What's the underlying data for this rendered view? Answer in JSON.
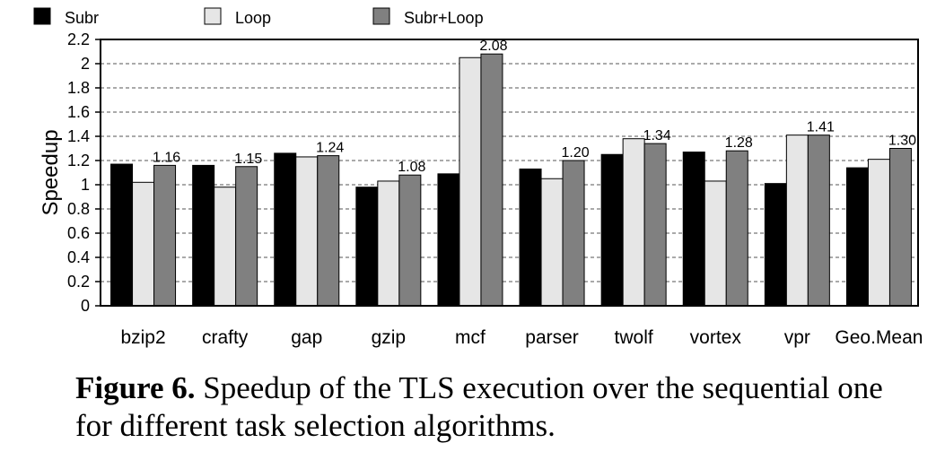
{
  "chart_data": {
    "type": "bar",
    "ylabel": "Speedup",
    "ylim": [
      0,
      2.2
    ],
    "yticks": [
      0,
      0.2,
      0.4,
      0.6,
      0.8,
      1,
      1.2,
      1.4,
      1.6,
      1.8,
      2,
      2.2
    ],
    "ytick_labels": [
      "0",
      "0.2",
      "0.4",
      "0.6",
      "0.8",
      "1",
      "1.2",
      "1.4",
      "1.6",
      "1.8",
      "2",
      "2.2"
    ],
    "grid": "horizontal-dashed",
    "legend_position": "top-left, outside",
    "categories": [
      "bzip2",
      "crafty",
      "gap",
      "gzip",
      "mcf",
      "parser",
      "twolf",
      "vortex",
      "vpr",
      "Geo.Mean"
    ],
    "series": [
      {
        "name": "Subr",
        "color": "#000000",
        "values": [
          1.17,
          1.16,
          1.26,
          0.98,
          1.09,
          1.13,
          1.25,
          1.27,
          1.01,
          1.14
        ]
      },
      {
        "name": "Loop",
        "color": "#e6e6e6",
        "values": [
          1.02,
          0.98,
          1.23,
          1.03,
          2.05,
          1.05,
          1.38,
          1.03,
          1.41,
          1.21
        ]
      },
      {
        "name": "Subr+Loop",
        "color": "#808080",
        "values": [
          1.16,
          1.15,
          1.24,
          1.08,
          2.08,
          1.2,
          1.34,
          1.28,
          1.41,
          1.3
        ]
      }
    ],
    "data_labels": [
      "1.16",
      "1.15",
      "1.24",
      "1.08",
      "2.08",
      "1.20",
      "1.34",
      "1.28",
      "1.41",
      "1.30"
    ]
  },
  "caption": {
    "label": "Figure 6.",
    "text": " Speedup of the TLS execution over the sequential one for different task selection algorithms."
  }
}
